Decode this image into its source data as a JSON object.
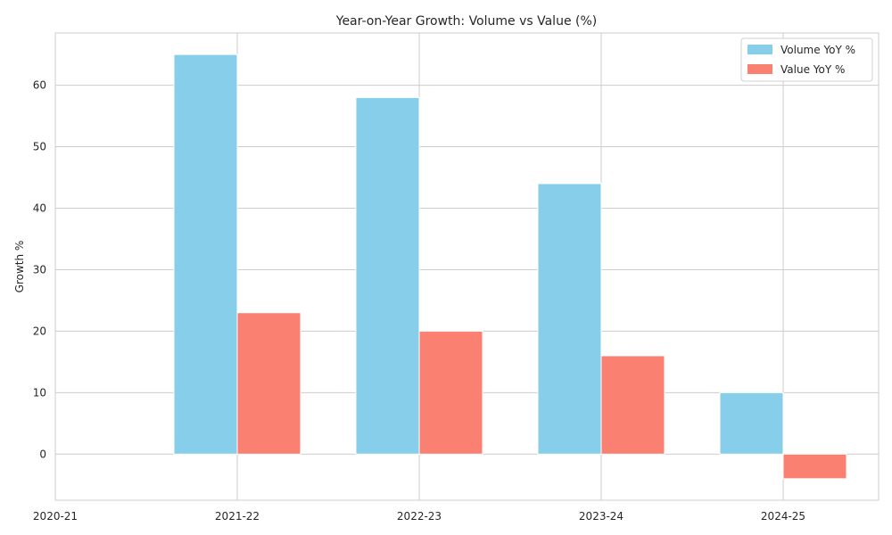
{
  "chart_data": {
    "type": "bar",
    "title": "Year-on-Year Growth: Volume vs Value (%)",
    "xlabel": "",
    "ylabel": "Growth %",
    "categories": [
      "2020-21",
      "2021-22",
      "2022-23",
      "2023-24",
      "2024-25"
    ],
    "series": [
      {
        "name": "Volume YoY %",
        "color": "#87CEEB",
        "values": [
          null,
          65,
          58,
          44,
          10
        ]
      },
      {
        "name": "Value YoY %",
        "color": "#FA8072",
        "values": [
          null,
          23,
          20,
          16,
          -4
        ]
      }
    ],
    "ylim": [
      -7.5,
      68.5
    ],
    "yticks": [
      0,
      10,
      20,
      30,
      40,
      50,
      60
    ],
    "grid": true,
    "legend": "top-right"
  }
}
